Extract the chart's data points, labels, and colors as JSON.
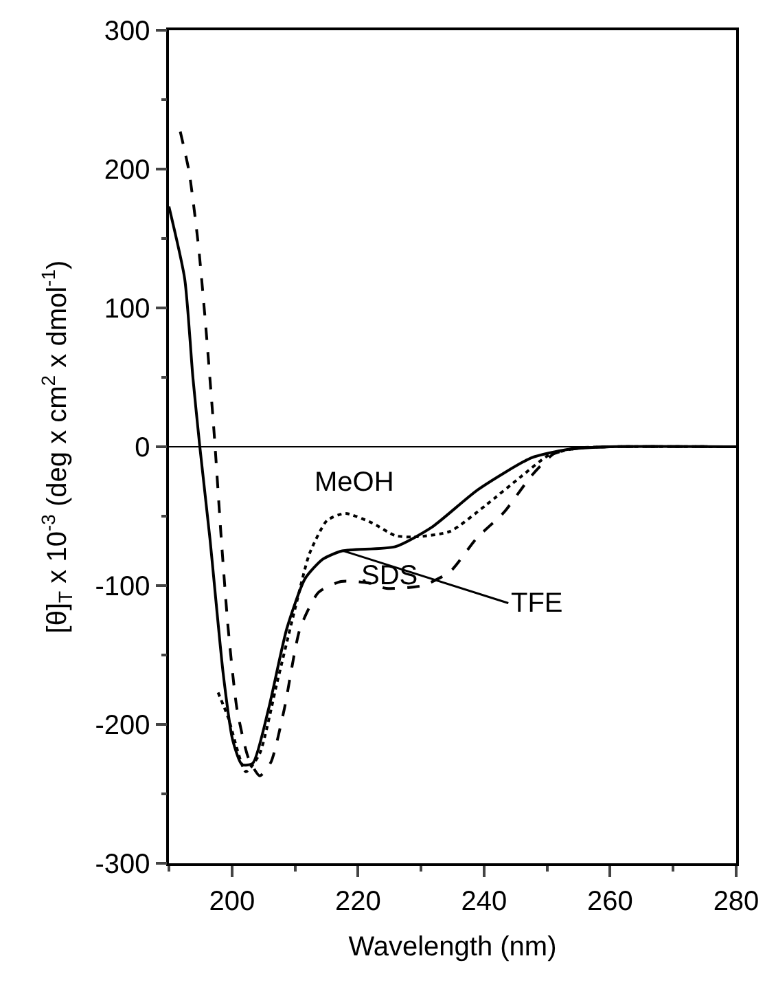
{
  "chart_data": {
    "type": "line",
    "xlabel": "Wavelength (nm)",
    "ylabel": "[θ]$_{T}$ x 10$^{-3}$ (deg x cm$^{2}$ x dmol$^{-1}$)",
    "xlim": [
      190,
      280
    ],
    "ylim": [
      -300,
      300
    ],
    "xticks": [
      200,
      220,
      240,
      260,
      280
    ],
    "yticks": [
      -300,
      -200,
      -100,
      0,
      100,
      200,
      300
    ],
    "marker": "none",
    "series": [
      {
        "color": "#000000",
        "line_style": "solid",
        "x": [
          190,
          192.5,
          193.8,
          194.9,
          196.5,
          198.6,
          200.1,
          201.6,
          203.3,
          205.8,
          208.7,
          211.6,
          214.4,
          217.5,
          225.9,
          231.7,
          239.0,
          247.5,
          253.2,
          260,
          280
        ],
        "values": [
          173,
          121,
          50,
          0,
          -66,
          -163,
          -211,
          -229,
          -228,
          -189,
          -131,
          -95,
          -81,
          -75,
          -72,
          -58,
          -31,
          -8,
          -2,
          0,
          0
        ]
      },
      {
        "color": "#000000",
        "line_style": "dotted",
        "x": [
          197.8,
          199.4,
          202.2,
          204.4,
          207.2,
          210.1,
          212.3,
          215.1,
          218.0,
          222.3,
          225.9,
          228.8,
          234.6,
          240.3,
          246.0,
          250.3,
          254.7,
          260,
          280
        ],
        "values": [
          -177,
          -195,
          -234,
          -221,
          -169,
          -115,
          -77,
          -53,
          -48,
          -55,
          -64,
          -65,
          -61,
          -42,
          -21,
          -6,
          -1,
          0,
          0
        ]
      },
      {
        "color": "#000000",
        "line_style": "dashed",
        "x": [
          191.8,
          193.2,
          194.7,
          195.8,
          197.2,
          198.3,
          199.4,
          200.8,
          202.6,
          204.4,
          206.2,
          208.3,
          210.8,
          213.7,
          217.3,
          221.6,
          224.5,
          230.2,
          234.6,
          238.8,
          243.2,
          247.5,
          251.1,
          255,
          260,
          280
        ],
        "values": [
          227,
          198,
          144,
          89,
          8,
          -66,
          -131,
          -189,
          -224,
          -237,
          -227,
          -189,
          -131,
          -105,
          -97,
          -98,
          -102,
          -100,
          -90,
          -66,
          -47,
          -21,
          -5,
          -1,
          0,
          0
        ]
      }
    ],
    "ref_lines": [
      {
        "axis": "y",
        "value": 0,
        "color": "#000000",
        "line_style": "solid"
      }
    ],
    "annotations": [
      "MeOH",
      "SDS",
      {
        "text": "TFE",
        "x": 217.7,
        "y": -75
      }
    ]
  }
}
